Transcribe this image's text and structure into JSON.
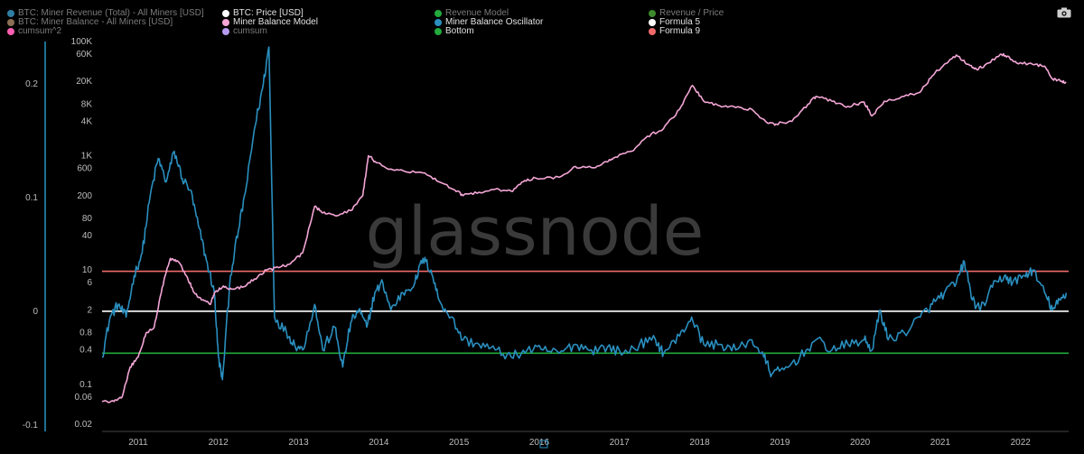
{
  "legend": [
    {
      "label": "BTC: Miner Revenue (Total) - All Miners [USD]",
      "color": "#2f7fa3",
      "dim": true
    },
    {
      "label": "BTC: Price [USD]",
      "color": "#ffffff",
      "dim": false
    },
    {
      "label": "Revenue Model",
      "color": "#22aa3c",
      "dim": true
    },
    {
      "label": "Revenue / Price",
      "color": "#3d8a2c",
      "dim": true
    },
    {
      "label": "BTC: Miner Balance - All Miners [USD]",
      "color": "#8a6f55",
      "dim": true
    },
    {
      "label": "Miner Balance Model",
      "color": "#f4a6d6",
      "dim": false
    },
    {
      "label": "Miner Balance Oscillator",
      "color": "#2a8fbf",
      "dim": false
    },
    {
      "label": "Formula 5",
      "color": "#ffffff",
      "dim": false
    },
    {
      "label": "cumsum^2",
      "color": "#ff5fb3",
      "dim": true
    },
    {
      "label": "cumsum",
      "color": "#b59cf0",
      "dim": true
    },
    {
      "label": "Bottom",
      "color": "#22aa3c",
      "dim": false
    },
    {
      "label": "Formula 9",
      "color": "#f06a6a",
      "dim": false
    }
  ],
  "toolbar": {
    "camera_icon": "camera-icon"
  },
  "watermark": "glassnode",
  "chart_data": {
    "type": "line",
    "x_ticks": [
      "2011",
      "2012",
      "2013",
      "2014",
      "2015",
      "2016",
      "2017",
      "2018",
      "2019",
      "2020",
      "2021",
      "2022"
    ],
    "y_right_ticks": [
      "100K",
      "60K",
      "20K",
      "8K",
      "4K",
      "1K",
      "600",
      "200",
      "80",
      "40",
      "10",
      "6",
      "2",
      "0.8",
      "0.4",
      "0.1",
      "0.06",
      "0.02"
    ],
    "y_left_ticks": [
      "0.2",
      "0.1",
      "0",
      "-0.1"
    ],
    "y_right_scale": "log",
    "grid": false,
    "horizontal_lines": [
      {
        "name": "Formula 9",
        "value": 9.5,
        "color": "#f06a6a"
      },
      {
        "name": "Formula 5",
        "value": 1.9,
        "color": "#ffffff"
      },
      {
        "name": "Bottom",
        "value": 0.35,
        "color": "#22aa3c"
      }
    ],
    "series": [
      {
        "name": "Miner Balance Model",
        "color": "#f4a6d6",
        "axis": "right",
        "points": [
          [
            2010.6,
            0.05
          ],
          [
            2010.75,
            0.05
          ],
          [
            2010.85,
            0.06
          ],
          [
            2010.95,
            0.2
          ],
          [
            2011.05,
            0.3
          ],
          [
            2011.15,
            0.8
          ],
          [
            2011.25,
            1.0
          ],
          [
            2011.35,
            5
          ],
          [
            2011.45,
            16
          ],
          [
            2011.55,
            14
          ],
          [
            2011.65,
            8
          ],
          [
            2011.75,
            4
          ],
          [
            2011.85,
            3
          ],
          [
            2011.95,
            2.5
          ],
          [
            2012.0,
            4
          ],
          [
            2012.1,
            5
          ],
          [
            2012.2,
            4.8
          ],
          [
            2012.35,
            5
          ],
          [
            2012.5,
            7
          ],
          [
            2012.65,
            10
          ],
          [
            2012.8,
            11
          ],
          [
            2012.95,
            13
          ],
          [
            2013.1,
            20
          ],
          [
            2013.25,
            130
          ],
          [
            2013.35,
            100
          ],
          [
            2013.5,
            90
          ],
          [
            2013.7,
            110
          ],
          [
            2013.85,
            200
          ],
          [
            2013.92,
            1000
          ],
          [
            2014.0,
            800
          ],
          [
            2014.15,
            600
          ],
          [
            2014.35,
            550
          ],
          [
            2014.6,
            500
          ],
          [
            2014.8,
            350
          ],
          [
            2015.0,
            250
          ],
          [
            2015.1,
            200
          ],
          [
            2015.3,
            230
          ],
          [
            2015.5,
            260
          ],
          [
            2015.7,
            240
          ],
          [
            2015.85,
            350
          ],
          [
            2016.0,
            410
          ],
          [
            2016.3,
            420
          ],
          [
            2016.5,
            650
          ],
          [
            2016.7,
            620
          ],
          [
            2016.9,
            780
          ],
          [
            2017.0,
            950
          ],
          [
            2017.2,
            1200
          ],
          [
            2017.4,
            2200
          ],
          [
            2017.6,
            3000
          ],
          [
            2017.8,
            6500
          ],
          [
            2017.96,
            17000
          ],
          [
            2018.1,
            9000
          ],
          [
            2018.3,
            7500
          ],
          [
            2018.5,
            7000
          ],
          [
            2018.7,
            6500
          ],
          [
            2018.9,
            3700
          ],
          [
            2019.0,
            3600
          ],
          [
            2019.2,
            4000
          ],
          [
            2019.4,
            8000
          ],
          [
            2019.5,
            11000
          ],
          [
            2019.7,
            9000
          ],
          [
            2019.9,
            7300
          ],
          [
            2020.1,
            8700
          ],
          [
            2020.2,
            5000
          ],
          [
            2020.35,
            9000
          ],
          [
            2020.6,
            11000
          ],
          [
            2020.8,
            13000
          ],
          [
            2020.95,
            25000
          ],
          [
            2021.1,
            40000
          ],
          [
            2021.25,
            58000
          ],
          [
            2021.4,
            40000
          ],
          [
            2021.5,
            33000
          ],
          [
            2021.6,
            38000
          ],
          [
            2021.8,
            60000
          ],
          [
            2021.9,
            55000
          ],
          [
            2022.0,
            42000
          ],
          [
            2022.2,
            40000
          ],
          [
            2022.35,
            37000
          ],
          [
            2022.45,
            22000
          ],
          [
            2022.55,
            20000
          ],
          [
            2022.62,
            19500
          ]
        ]
      },
      {
        "name": "Miner Balance Oscillator",
        "color": "#2a8fbf",
        "axis": "right",
        "points": [
          [
            2010.6,
            0.3
          ],
          [
            2010.7,
            1.5
          ],
          [
            2010.8,
            2.5
          ],
          [
            2010.9,
            1.5
          ],
          [
            2011.0,
            8
          ],
          [
            2011.1,
            20
          ],
          [
            2011.2,
            200
          ],
          [
            2011.3,
            900
          ],
          [
            2011.4,
            350
          ],
          [
            2011.5,
            1200
          ],
          [
            2011.6,
            400
          ],
          [
            2011.7,
            250
          ],
          [
            2011.8,
            60
          ],
          [
            2011.9,
            15
          ],
          [
            2012.0,
            4
          ],
          [
            2012.05,
            0.3
          ],
          [
            2012.1,
            0.12
          ],
          [
            2012.2,
            8
          ],
          [
            2012.3,
            50
          ],
          [
            2012.4,
            300
          ],
          [
            2012.5,
            3000
          ],
          [
            2012.6,
            15000
          ],
          [
            2012.68,
            80000
          ],
          [
            2012.75,
            1.5
          ],
          [
            2012.9,
            0.8
          ],
          [
            2013.0,
            0.5
          ],
          [
            2013.1,
            0.4
          ],
          [
            2013.25,
            2.5
          ],
          [
            2013.35,
            0.4
          ],
          [
            2013.5,
            1
          ],
          [
            2013.6,
            0.2
          ],
          [
            2013.7,
            1.2
          ],
          [
            2013.8,
            2
          ],
          [
            2013.9,
            1
          ],
          [
            2014.0,
            4
          ],
          [
            2014.1,
            6
          ],
          [
            2014.2,
            2
          ],
          [
            2014.35,
            4
          ],
          [
            2014.5,
            6
          ],
          [
            2014.6,
            16
          ],
          [
            2014.7,
            10
          ],
          [
            2014.8,
            3
          ],
          [
            2014.95,
            1.5
          ],
          [
            2015.1,
            0.6
          ],
          [
            2015.3,
            0.5
          ],
          [
            2015.5,
            0.4
          ],
          [
            2015.7,
            0.3
          ],
          [
            2015.9,
            0.4
          ],
          [
            2016.1,
            0.4
          ],
          [
            2016.3,
            0.35
          ],
          [
            2016.5,
            0.5
          ],
          [
            2016.7,
            0.4
          ],
          [
            2016.9,
            0.45
          ],
          [
            2017.1,
            0.35
          ],
          [
            2017.3,
            0.5
          ],
          [
            2017.5,
            0.6
          ],
          [
            2017.6,
            0.35
          ],
          [
            2017.8,
            0.7
          ],
          [
            2017.95,
            1.5
          ],
          [
            2018.1,
            0.5
          ],
          [
            2018.3,
            0.5
          ],
          [
            2018.5,
            0.4
          ],
          [
            2018.7,
            0.6
          ],
          [
            2018.85,
            0.3
          ],
          [
            2018.95,
            0.15
          ],
          [
            2019.1,
            0.18
          ],
          [
            2019.3,
            0.3
          ],
          [
            2019.5,
            0.6
          ],
          [
            2019.7,
            0.4
          ],
          [
            2019.9,
            0.5
          ],
          [
            2020.1,
            0.6
          ],
          [
            2020.2,
            0.4
          ],
          [
            2020.3,
            2
          ],
          [
            2020.4,
            0.6
          ],
          [
            2020.6,
            0.8
          ],
          [
            2020.8,
            1.5
          ],
          [
            2020.95,
            2.5
          ],
          [
            2021.1,
            4
          ],
          [
            2021.25,
            6
          ],
          [
            2021.35,
            14
          ],
          [
            2021.45,
            3
          ],
          [
            2021.55,
            2
          ],
          [
            2021.7,
            5
          ],
          [
            2021.85,
            8
          ],
          [
            2021.95,
            6
          ],
          [
            2022.1,
            8
          ],
          [
            2022.2,
            10
          ],
          [
            2022.35,
            4
          ],
          [
            2022.45,
            2
          ],
          [
            2022.55,
            3
          ],
          [
            2022.62,
            4
          ]
        ]
      }
    ]
  }
}
